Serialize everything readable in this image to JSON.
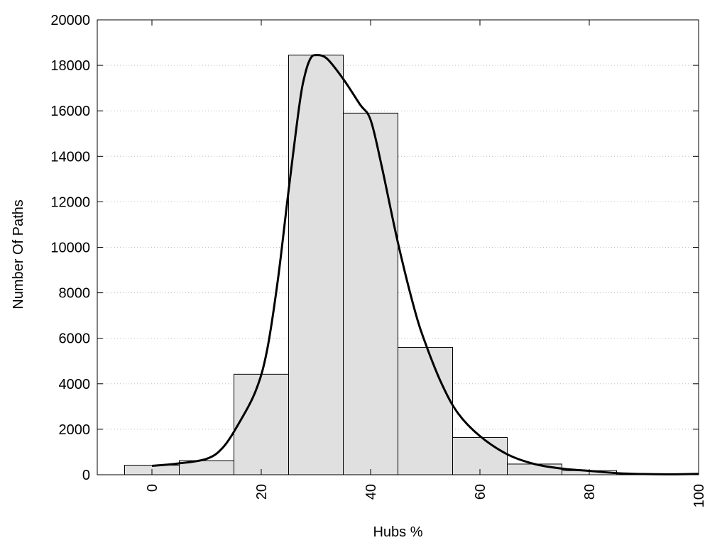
{
  "chart_data": {
    "type": "bar",
    "title": "",
    "xlabel": "Hubs %",
    "ylabel": "Number Of Paths",
    "xlim": [
      -10,
      100
    ],
    "ylim": [
      0,
      20000
    ],
    "grid": true,
    "bar_color": "#e0e0e0",
    "line_color": "#000000",
    "x_ticks": [
      "0",
      "20",
      "40",
      "60",
      "80",
      "100"
    ],
    "y_ticks": [
      "0",
      "2000",
      "4000",
      "6000",
      "8000",
      "10000",
      "12000",
      "14000",
      "16000",
      "18000",
      "20000"
    ],
    "bins": [
      {
        "center": 0,
        "value": 420
      },
      {
        "center": 10,
        "value": 620
      },
      {
        "center": 20,
        "value": 4420
      },
      {
        "center": 30,
        "value": 18450
      },
      {
        "center": 40,
        "value": 15900
      },
      {
        "center": 50,
        "value": 5600
      },
      {
        "center": 60,
        "value": 1640
      },
      {
        "center": 70,
        "value": 470
      },
      {
        "center": 80,
        "value": 180
      },
      {
        "center": 90,
        "value": 0
      }
    ],
    "bin_width": 10,
    "curve": {
      "x": [
        0,
        5,
        10,
        13,
        16,
        19,
        21,
        23,
        25,
        27,
        28,
        29,
        30,
        32,
        35,
        38,
        40,
        42,
        45,
        48,
        50,
        53,
        56,
        60,
        65,
        70,
        75,
        80,
        85,
        90,
        95,
        100
      ],
      "y": [
        390,
        500,
        700,
        1200,
        2300,
        3700,
        5400,
        8500,
        12500,
        16300,
        17600,
        18300,
        18450,
        18300,
        17400,
        16300,
        15600,
        13600,
        10200,
        7300,
        5800,
        4000,
        2700,
        1700,
        900,
        470,
        270,
        170,
        70,
        30,
        20,
        40
      ]
    }
  }
}
